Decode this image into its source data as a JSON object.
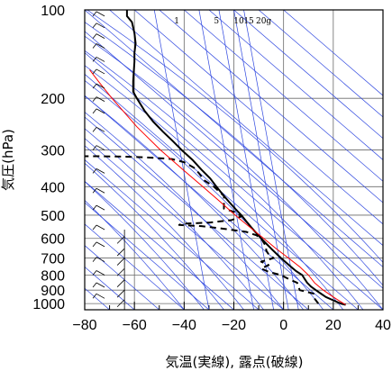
{
  "chart_data": {
    "type": "line",
    "title": "",
    "xlabel": "気温(実線), 露点(破線)",
    "ylabel": "気圧(hPa)",
    "xlim": [
      -80,
      40
    ],
    "ylim": [
      1050,
      100
    ],
    "y_scale": "log",
    "x_skew_degC_per_log_decade": 0,
    "grid": true,
    "x_ticks": [
      "−80",
      "−60",
      "−40",
      "−20",
      "0",
      "20",
      "40"
    ],
    "x_tick_values": [
      -80,
      -60,
      -40,
      -20,
      0,
      20,
      40
    ],
    "y_ticks": [
      "100",
      "200",
      "300",
      "400",
      "500",
      "600",
      "700",
      "800",
      "900",
      "1000"
    ],
    "y_tick_values": [
      100,
      200,
      300,
      400,
      500,
      600,
      700,
      800,
      900,
      1000
    ],
    "mixing_ratio_labels": [
      "1",
      "5",
      "10",
      "15",
      "20g"
    ],
    "series": [
      {
        "role": "temperature",
        "style": "solid",
        "color": "#000000",
        "points": [
          [
            1010,
            25
          ],
          [
            1000,
            23
          ],
          [
            975,
            20
          ],
          [
            950,
            17
          ],
          [
            925,
            15
          ],
          [
            900,
            13
          ],
          [
            875,
            11
          ],
          [
            850,
            9.5
          ],
          [
            825,
            8.5
          ],
          [
            800,
            7.5
          ],
          [
            775,
            5
          ],
          [
            750,
            3
          ],
          [
            725,
            1
          ],
          [
            700,
            -1
          ],
          [
            675,
            -3
          ],
          [
            650,
            -5
          ],
          [
            625,
            -7
          ],
          [
            600,
            -9
          ],
          [
            575,
            -11
          ],
          [
            550,
            -13
          ],
          [
            525,
            -15
          ],
          [
            500,
            -17
          ],
          [
            475,
            -19.5
          ],
          [
            450,
            -22
          ],
          [
            425,
            -24.5
          ],
          [
            400,
            -27
          ],
          [
            375,
            -29.5
          ],
          [
            350,
            -33
          ],
          [
            325,
            -36.5
          ],
          [
            300,
            -41
          ],
          [
            280,
            -44.5
          ],
          [
            260,
            -48.5
          ],
          [
            240,
            -52.5
          ],
          [
            220,
            -56
          ],
          [
            200,
            -59
          ],
          [
            190,
            -60.5
          ],
          [
            175,
            -60.5
          ],
          [
            160,
            -60.2
          ],
          [
            150,
            -60
          ],
          [
            140,
            -60
          ],
          [
            130,
            -59.5
          ],
          [
            120,
            -60
          ],
          [
            110,
            -61
          ],
          [
            105,
            -63
          ],
          [
            100,
            -63
          ]
        ]
      },
      {
        "role": "dewpoint",
        "style": "dashed",
        "color": "#000000",
        "points": [
          [
            1000,
            14
          ],
          [
            975,
            13
          ],
          [
            950,
            12
          ],
          [
            925,
            12
          ],
          [
            900,
            6.5
          ],
          [
            875,
            6
          ],
          [
            850,
            5.5
          ],
          [
            825,
            2
          ],
          [
            800,
            -1
          ],
          [
            780,
            -6
          ],
          [
            760,
            -9
          ],
          [
            740,
            -6
          ],
          [
            720,
            -9
          ],
          [
            700,
            -4
          ],
          [
            680,
            -6
          ],
          [
            660,
            -7
          ],
          [
            640,
            -7
          ],
          [
            620,
            -8
          ],
          [
            600,
            -9
          ],
          [
            585,
            -11
          ],
          [
            570,
            -15
          ],
          [
            555,
            -25
          ],
          [
            545,
            -33
          ],
          [
            540,
            -42
          ],
          [
            535,
            -41
          ],
          [
            530,
            -30
          ],
          [
            520,
            -21
          ],
          [
            505,
            -17
          ],
          [
            490,
            -19
          ],
          [
            475,
            -24
          ],
          [
            460,
            -24
          ],
          [
            445,
            -24
          ],
          [
            430,
            -24
          ],
          [
            415,
            -26
          ],
          [
            400,
            -28
          ],
          [
            380,
            -32
          ],
          [
            360,
            -34
          ],
          [
            345,
            -36
          ],
          [
            330,
            -40
          ],
          [
            322,
            -45
          ],
          [
            318,
            -55
          ],
          [
            316,
            -65
          ],
          [
            315,
            -75
          ],
          [
            315,
            -80
          ]
        ]
      },
      {
        "role": "parcel",
        "style": "solid",
        "color": "#ff0000",
        "points": [
          [
            1010,
            25
          ],
          [
            980,
            22.5
          ],
          [
            950,
            20
          ],
          [
            900,
            16
          ],
          [
            850,
            12.5
          ],
          [
            800,
            10
          ],
          [
            750,
            6.5
          ],
          [
            700,
            2
          ],
          [
            650,
            -3
          ],
          [
            600,
            -8
          ],
          [
            550,
            -13.5
          ],
          [
            500,
            -19.5
          ],
          [
            450,
            -25.5
          ],
          [
            400,
            -32.5
          ],
          [
            350,
            -40.5
          ],
          [
            300,
            -49.5
          ],
          [
            250,
            -59
          ],
          [
            200,
            -69
          ],
          [
            175,
            -74.5
          ],
          [
            160,
            -78
          ]
        ]
      }
    ],
    "wind_barbs": {
      "columns": [
        "main",
        "secondary"
      ],
      "present": true
    }
  }
}
